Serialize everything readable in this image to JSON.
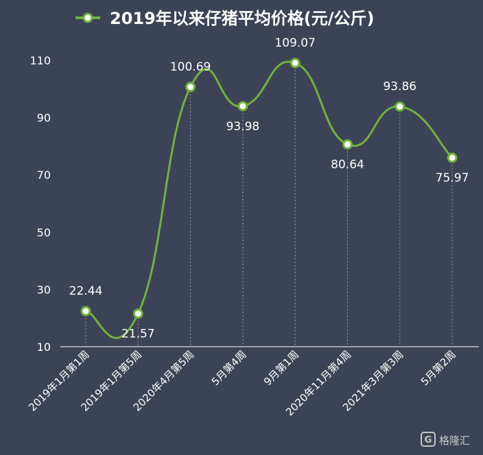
{
  "chart_data": {
    "type": "line",
    "title": "2019年以来仔猪平均价格(元/公斤)",
    "categories": [
      "2019年1月第1周",
      "2019年1月第5周",
      "2020年4月第5周",
      "5月第4周",
      "9月第1周",
      "2020年11月第4周",
      "2021年3月第3周",
      "5月第2周"
    ],
    "series": [
      {
        "values": [
          22.44,
          21.57,
          100.69,
          93.98,
          109.07,
          80.64,
          93.86,
          75.97
        ]
      }
    ],
    "data_labels": [
      "22.44",
      "21.57",
      "100.69",
      "93.98",
      "109.07",
      "80.64",
      "93.86",
      "75.97"
    ],
    "y_ticks": [
      "10",
      "30",
      "50",
      "70",
      "90",
      "110"
    ],
    "ylim": [
      10,
      110
    ],
    "legend": "top",
    "grid": false,
    "smooth": true,
    "colors": {
      "background": "#3d4356",
      "line": "#6fb23b",
      "marker_fill": "#ffffff",
      "text": "#ffffff",
      "axis": "#ffffff",
      "drop_line": "#9a9aa6"
    }
  },
  "watermark": {
    "text": "格隆汇"
  }
}
